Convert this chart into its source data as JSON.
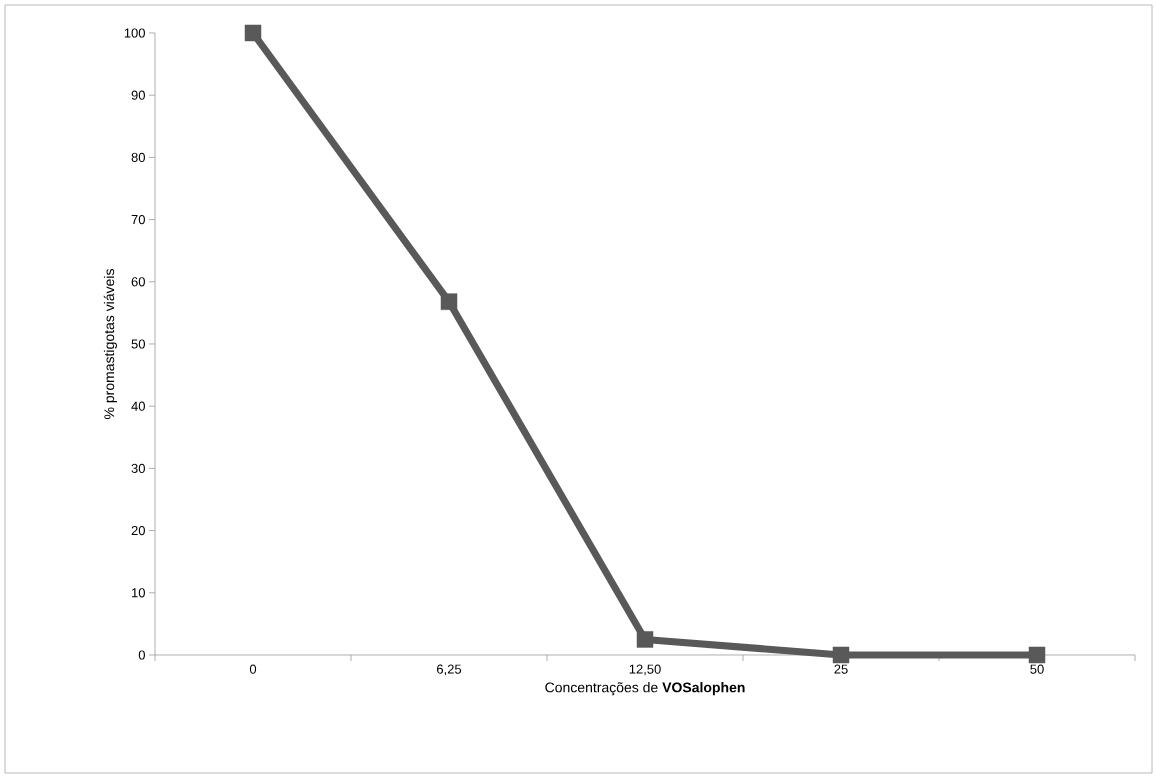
{
  "chart_data": {
    "type": "line",
    "categories": [
      "0",
      "6,25",
      "12,50",
      "25",
      "50"
    ],
    "values": [
      100,
      56.8,
      2.5,
      0,
      0
    ],
    "color": "#595959",
    "marker": "square",
    "line_style": "solid",
    "ylim": [
      0,
      100
    ],
    "yticks": [
      0,
      10,
      20,
      30,
      40,
      50,
      60,
      70,
      80,
      90,
      100
    ],
    "xlabel": "Concentrações de **VOSalophen**",
    "ylabel": "% promastigotas viáveis"
  }
}
